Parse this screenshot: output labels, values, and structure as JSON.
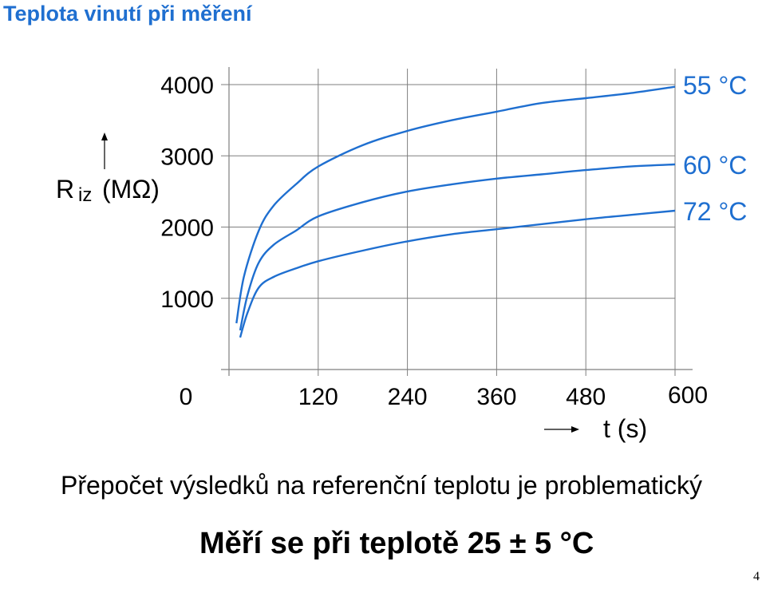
{
  "slide": {
    "title": "Teplota vinutí při měření",
    "note_1": "Přepočet výsledků na referenční teplotu je problematický",
    "note_2": "Měří se při teplotě 25 ± 5 °C",
    "page_number": "4"
  },
  "colors": {
    "title": "#1f6fd0",
    "series": "#1f6fd0",
    "grid": "#7f7f7f"
  },
  "chart_data": {
    "type": "line",
    "xlabel": "t (s)",
    "ylabel_main": "R",
    "ylabel_sub": "iz",
    "ylabel_unit": "(MΩ)",
    "x_ticks": [
      0,
      120,
      240,
      360,
      480,
      600
    ],
    "y_ticks": [
      1000,
      2000,
      3000,
      4000
    ],
    "xlim": [
      0,
      600
    ],
    "ylim": [
      0,
      4000
    ],
    "grid": true,
    "series": [
      {
        "name": "55 °C",
        "x": [
          10,
          20,
          40,
          60,
          90,
          120,
          180,
          240,
          300,
          360,
          420,
          480,
          540,
          600
        ],
        "y": [
          650,
          1300,
          1950,
          2300,
          2600,
          2850,
          3150,
          3350,
          3500,
          3620,
          3740,
          3810,
          3880,
          3970
        ]
      },
      {
        "name": "60 °C",
        "x": [
          15,
          25,
          40,
          60,
          90,
          120,
          180,
          240,
          300,
          360,
          420,
          480,
          540,
          600
        ],
        "y": [
          550,
          1050,
          1500,
          1750,
          1950,
          2150,
          2350,
          2500,
          2600,
          2680,
          2740,
          2800,
          2850,
          2880
        ]
      },
      {
        "name": "72 °C",
        "x": [
          15,
          25,
          40,
          60,
          90,
          120,
          180,
          240,
          300,
          360,
          420,
          480,
          540,
          600
        ],
        "y": [
          450,
          800,
          1150,
          1300,
          1420,
          1520,
          1670,
          1800,
          1900,
          1970,
          2040,
          2110,
          2170,
          2230
        ]
      }
    ]
  }
}
